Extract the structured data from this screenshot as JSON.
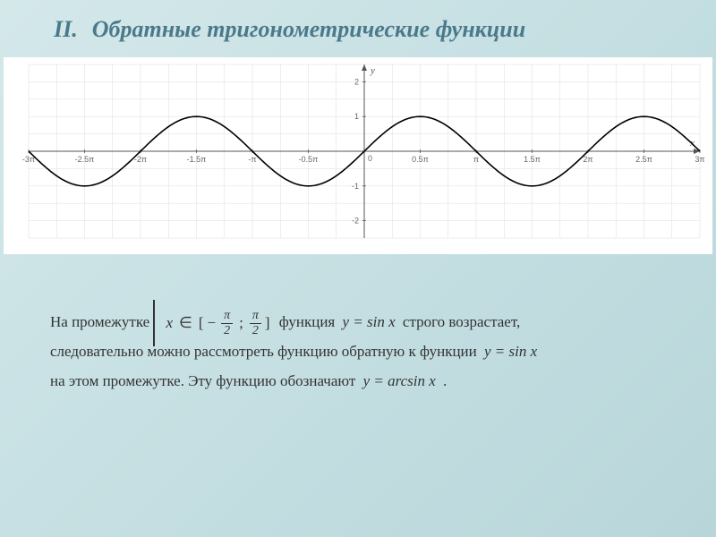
{
  "header": {
    "roman": "II.",
    "title": "Обратные тригонометрические функции"
  },
  "chart": {
    "type": "line",
    "function": "sin",
    "xlim": [
      -9.4248,
      9.4248
    ],
    "ylim": [
      -2.5,
      2.5
    ],
    "xtick_positions": [
      -9.4248,
      -7.854,
      -6.2832,
      -4.7124,
      -3.1416,
      -1.5708,
      0,
      1.5708,
      3.1416,
      4.7124,
      6.2832,
      7.854,
      9.4248
    ],
    "xtick_labels": [
      "-3π",
      "-2.5π",
      "-2π",
      "-1.5π",
      "-π",
      "-0.5π",
      "0",
      "0.5π",
      "π",
      "1.5π",
      "2π",
      "2.5π",
      "3π"
    ],
    "ytick_positions": [
      -2,
      -1,
      0,
      1,
      2
    ],
    "ytick_labels": [
      "-2",
      "-1",
      "",
      "1",
      "2"
    ],
    "axis_labels": {
      "x": "x",
      "y": "y"
    },
    "colors": {
      "background": "#ffffff",
      "grid": "#dddddd",
      "axis": "#555555",
      "curve": "#000000",
      "ticklabel": "#666666"
    },
    "line_width": 1.6,
    "grid_minor": true,
    "axis_label_fontsize": 11,
    "tick_fontsize": 9,
    "samples": 300
  },
  "body": {
    "line1_a": "На промежутке",
    "interval": {
      "var": "x",
      "elem": "∈",
      "a_sign": "−",
      "a_num": "π",
      "a_den": "2",
      "b_num": "π",
      "b_den": "2"
    },
    "line1_b": "функция",
    "fn1": "y = sin x",
    "line1_c": "строго возрастает,",
    "line2_a": "следовательно можно рассмотреть функцию обратную к функции",
    "fn2": "y = sin x",
    "line3_a": "на этом промежутке. Эту функцию обозначают",
    "fn3": "y = arcsin x",
    "line3_b": "."
  }
}
